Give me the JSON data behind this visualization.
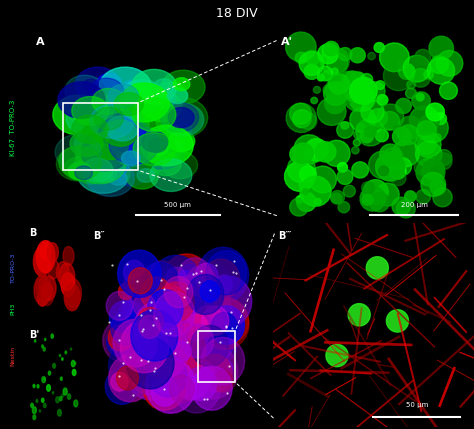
{
  "title": "18 DIV",
  "title_bg": "#000000",
  "title_color": "#ffffff",
  "panel_bg": "#000000",
  "label_A": "A",
  "label_Ap": "A'",
  "label_B": "B",
  "label_Bp": "B'",
  "label_Bpp": "B″",
  "label_Bppp": "B‴",
  "scalebar_A": "500 μm",
  "scalebar_Ap": "200 μm",
  "scalebar_Bppp": "50 μm",
  "fig_width": 4.74,
  "fig_height": 4.29,
  "dpi": 100
}
